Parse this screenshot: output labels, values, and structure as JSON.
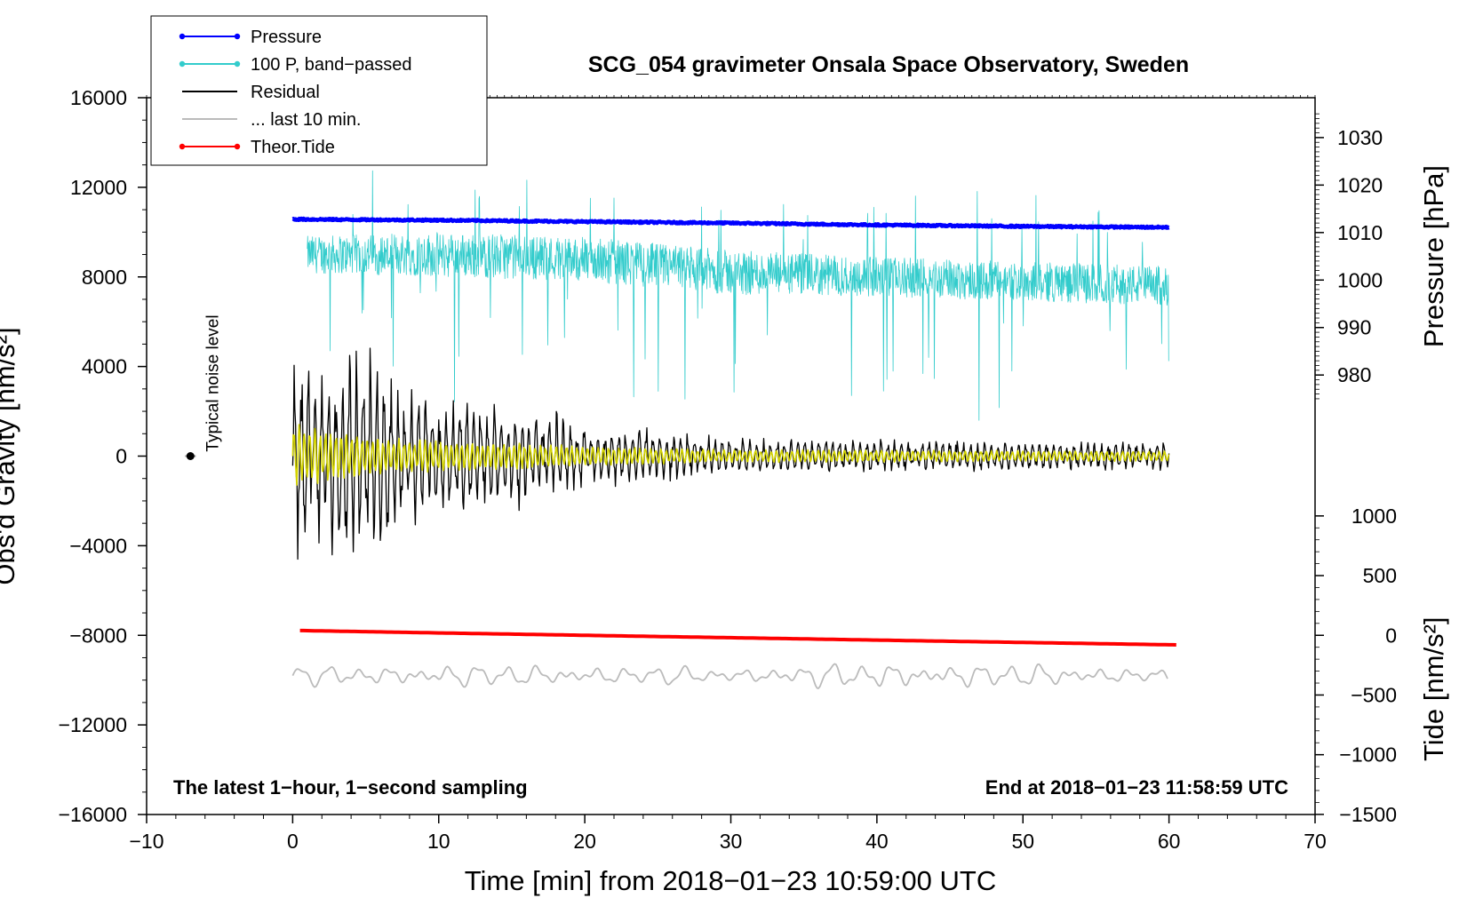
{
  "chart_data": {
    "type": "line",
    "title": "SCG_054 gravimeter Onsala Space Observatory, Sweden",
    "xlabel": "Time [min] from 2018−01−23 10:59:00 UTC",
    "ylabel_left": "Obs'd Gravity [nm/s²]",
    "ylabel_right_top": "Pressure [hPa]",
    "ylabel_right_bottom": "Tide [nm/s²]",
    "xlim": [
      -10,
      70
    ],
    "ylim_left": [
      -16000,
      16000
    ],
    "x_ticks": [
      -10,
      0,
      10,
      20,
      30,
      40,
      50,
      60,
      70
    ],
    "x_tick_labels": [
      "−10",
      "0",
      "10",
      "20",
      "30",
      "40",
      "50",
      "60",
      "70"
    ],
    "y_left_ticks": [
      16000,
      12000,
      8000,
      4000,
      0,
      -4000,
      -8000,
      -12000,
      -16000
    ],
    "y_left_tick_labels": [
      "16000",
      "12000",
      "8000",
      "4000",
      "0",
      "−4000",
      "−8000",
      "−12000",
      "−16000"
    ],
    "pressure_axis": {
      "ticks": [
        1030,
        1020,
        1010,
        1000,
        990,
        980
      ],
      "tick_labels": [
        "1030",
        "1020",
        "1010",
        "1000",
        "990",
        "980"
      ],
      "ref_value": 1000,
      "ref_gravity": 7860,
      "gravity_per_unit": 212
    },
    "tide_axis": {
      "ticks": [
        1000,
        500,
        0,
        -500,
        -1000,
        -1500
      ],
      "tick_labels": [
        "1000",
        "500",
        "0",
        "−500",
        "−1000",
        "−1500"
      ],
      "ref_value": 0,
      "ref_gravity": -8000,
      "gravity_per_unit": 5.33
    },
    "legend": [
      {
        "label": "Pressure",
        "color": "#0000ff",
        "marker": "dot"
      },
      {
        "label": "100 P, band−passed",
        "color": "#33cccc",
        "marker": "dot"
      },
      {
        "label": "Residual",
        "color": "#000000",
        "marker": "none"
      },
      {
        "label": "... last 10 min.",
        "color": "#bbbbbb",
        "marker": "none"
      },
      {
        "label": "Theor.Tide",
        "color": "#ff0000",
        "marker": "dot"
      }
    ],
    "series": [
      {
        "name": "Pressure",
        "axis": "pressure",
        "color": "#0000ff",
        "x": [
          0,
          10,
          20,
          30,
          40,
          50,
          60
        ],
        "values": [
          1012.8,
          1012.6,
          1012.3,
          1012.0,
          1011.6,
          1011.3,
          1011.1
        ]
      },
      {
        "name": "100 P, band−passed",
        "axis": "left",
        "color": "#33cccc",
        "x": [
          1,
          10,
          20,
          30,
          40,
          50,
          60
        ],
        "values": [
          9000,
          9000,
          8800,
          8200,
          8000,
          7800,
          7600
        ],
        "amplitude": [
          1500,
          1800,
          1800,
          1800,
          1600,
          1600,
          1600
        ]
      },
      {
        "name": "Residual",
        "axis": "left",
        "color": "#000000",
        "x": [
          0,
          5,
          10,
          15,
          20,
          30,
          40,
          50,
          60
        ],
        "values": [
          0,
          0,
          0,
          0,
          0,
          0,
          0,
          0,
          0
        ],
        "amplitude": [
          4000,
          4500,
          2500,
          2300,
          1500,
          800,
          700,
          650,
          600
        ]
      },
      {
        "name": "Filtered residual",
        "axis": "left",
        "color": "#d4d400",
        "x": [
          0,
          5,
          10,
          15,
          20,
          30,
          40,
          50,
          60
        ],
        "values": [
          0,
          0,
          0,
          0,
          0,
          0,
          0,
          0,
          0
        ],
        "amplitude": [
          1500,
          900,
          700,
          600,
          450,
          300,
          280,
          250,
          230
        ]
      },
      {
        "name": "... last 10 min.",
        "axis": "left",
        "color": "#bbbbbb",
        "x": [
          0,
          10,
          20,
          30,
          40,
          50,
          60
        ],
        "values": [
          -9800,
          -9800,
          -9800,
          -9800,
          -9800,
          -9800,
          -9800
        ],
        "amplitude": [
          400,
          500,
          450,
          350,
          600,
          500,
          350
        ]
      },
      {
        "name": "Theor.Tide",
        "axis": "tide",
        "color": "#ff0000",
        "x": [
          0.5,
          10,
          20,
          30,
          40,
          50,
          60.5
        ],
        "values": [
          40,
          20,
          0,
          -20,
          -40,
          -60,
          -80
        ]
      }
    ],
    "noise_marker": {
      "x": -7,
      "y": 0,
      "label": "Typical noise level"
    },
    "annotations": {
      "bottom_left": "The latest 1−hour, 1−second sampling",
      "bottom_right": "End at 2018−01−23 11:58:59 UTC"
    }
  }
}
